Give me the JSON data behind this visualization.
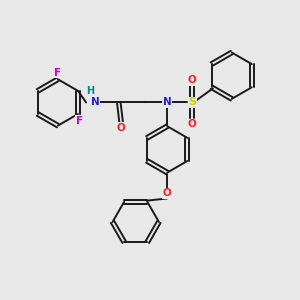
{
  "bg_color": "#e8e8e8",
  "bond_color": "#1a1a1a",
  "N_color": "#2222dd",
  "O_color": "#ff2020",
  "F_color": "#cc00cc",
  "S_color": "#cccc00",
  "H_color": "#008888",
  "figsize": [
    3.0,
    3.0
  ],
  "dpi": 100,
  "xlim": [
    0,
    10
  ],
  "ylim": [
    0,
    10
  ],
  "ring_r": 0.78,
  "lw": 1.4,
  "fs": 7.5
}
